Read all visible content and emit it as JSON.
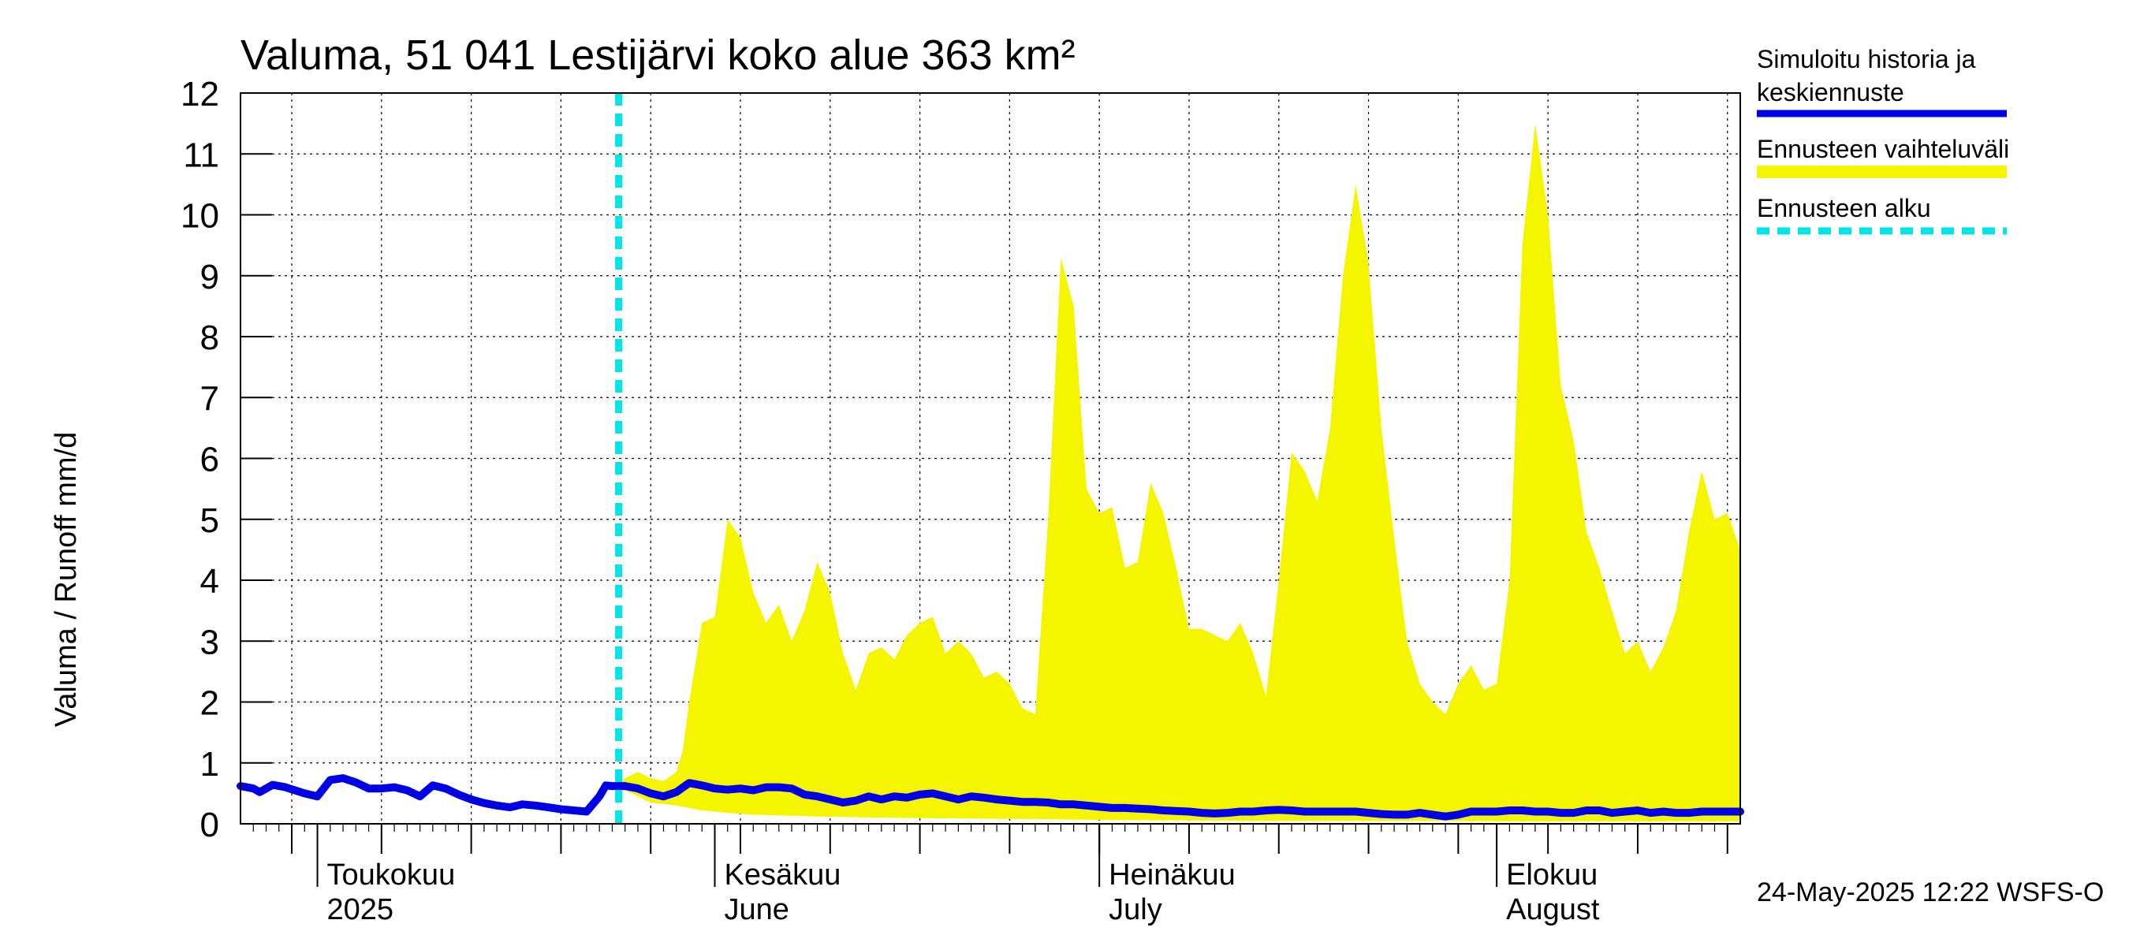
{
  "chart_data": {
    "type": "area",
    "title": "Valuma, 51 041 Lestijärvi koko alue 363 km²",
    "ylabel": "Valuma / Runoff    mm/d",
    "xlabel": "",
    "ylim": [
      0,
      12
    ],
    "yticks": [
      0,
      1,
      2,
      3,
      4,
      5,
      6,
      7,
      8,
      9,
      10,
      11,
      12
    ],
    "x_range_days": [
      0,
      117
    ],
    "x_start_date": "2025-04-25",
    "grid": true,
    "month_labels": [
      {
        "day": 6,
        "line1": "Toukokuu",
        "line2": "2025"
      },
      {
        "day": 37,
        "line1": "Kesäkuu",
        "line2": "June"
      },
      {
        "day": 67,
        "line1": "Heinäkuu",
        "line2": "July"
      },
      {
        "day": 98,
        "line1": "Elokuu",
        "line2": "August"
      }
    ],
    "forecast_start_day": 29.5,
    "series": [
      {
        "name": "Simuloitu historia ja keskiennuste",
        "color": "#0000e6",
        "points": [
          [
            0,
            0.62
          ],
          [
            1,
            0.58
          ],
          [
            1.5,
            0.52
          ],
          [
            2.5,
            0.64
          ],
          [
            3.5,
            0.6
          ],
          [
            5,
            0.5
          ],
          [
            6,
            0.45
          ],
          [
            7,
            0.72
          ],
          [
            8,
            0.75
          ],
          [
            9,
            0.68
          ],
          [
            10,
            0.58
          ],
          [
            11,
            0.58
          ],
          [
            12,
            0.6
          ],
          [
            13,
            0.55
          ],
          [
            14,
            0.45
          ],
          [
            15,
            0.63
          ],
          [
            16,
            0.58
          ],
          [
            17,
            0.48
          ],
          [
            18,
            0.4
          ],
          [
            19,
            0.34
          ],
          [
            20,
            0.3
          ],
          [
            21,
            0.27
          ],
          [
            22,
            0.32
          ],
          [
            23,
            0.3
          ],
          [
            24,
            0.27
          ],
          [
            25,
            0.24
          ],
          [
            26,
            0.22
          ],
          [
            27,
            0.2
          ],
          [
            28,
            0.45
          ],
          [
            28.5,
            0.63
          ],
          [
            29,
            0.62
          ],
          [
            30,
            0.62
          ],
          [
            31,
            0.58
          ],
          [
            32,
            0.5
          ],
          [
            33,
            0.45
          ],
          [
            34,
            0.52
          ],
          [
            35,
            0.67
          ],
          [
            36,
            0.63
          ],
          [
            37,
            0.58
          ],
          [
            38,
            0.56
          ],
          [
            39,
            0.58
          ],
          [
            40,
            0.55
          ],
          [
            41,
            0.6
          ],
          [
            42,
            0.6
          ],
          [
            43,
            0.58
          ],
          [
            44,
            0.48
          ],
          [
            45,
            0.45
          ],
          [
            46,
            0.4
          ],
          [
            47,
            0.35
          ],
          [
            48,
            0.38
          ],
          [
            49,
            0.45
          ],
          [
            50,
            0.4
          ],
          [
            51,
            0.45
          ],
          [
            52,
            0.43
          ],
          [
            53,
            0.48
          ],
          [
            54,
            0.5
          ],
          [
            55,
            0.45
          ],
          [
            56,
            0.4
          ],
          [
            57,
            0.45
          ],
          [
            58,
            0.43
          ],
          [
            59,
            0.4
          ],
          [
            60,
            0.38
          ],
          [
            61,
            0.36
          ],
          [
            62,
            0.36
          ],
          [
            63,
            0.35
          ],
          [
            64,
            0.32
          ],
          [
            65,
            0.32
          ],
          [
            66,
            0.3
          ],
          [
            67,
            0.28
          ],
          [
            68,
            0.26
          ],
          [
            69,
            0.26
          ],
          [
            70,
            0.25
          ],
          [
            71,
            0.24
          ],
          [
            72,
            0.22
          ],
          [
            73,
            0.21
          ],
          [
            74,
            0.2
          ],
          [
            75,
            0.18
          ],
          [
            76,
            0.17
          ],
          [
            77,
            0.18
          ],
          [
            78,
            0.2
          ],
          [
            79,
            0.2
          ],
          [
            80,
            0.22
          ],
          [
            81,
            0.23
          ],
          [
            82,
            0.22
          ],
          [
            83,
            0.2
          ],
          [
            84,
            0.2
          ],
          [
            85,
            0.2
          ],
          [
            86,
            0.2
          ],
          [
            87,
            0.2
          ],
          [
            88,
            0.18
          ],
          [
            89,
            0.16
          ],
          [
            90,
            0.15
          ],
          [
            91,
            0.15
          ],
          [
            92,
            0.18
          ],
          [
            93,
            0.15
          ],
          [
            94,
            0.12
          ],
          [
            95,
            0.15
          ],
          [
            96,
            0.2
          ],
          [
            97,
            0.2
          ],
          [
            98,
            0.2
          ],
          [
            99,
            0.22
          ],
          [
            100,
            0.22
          ],
          [
            101,
            0.2
          ],
          [
            102,
            0.2
          ],
          [
            103,
            0.18
          ],
          [
            104,
            0.18
          ],
          [
            105,
            0.22
          ],
          [
            106,
            0.22
          ],
          [
            107,
            0.18
          ],
          [
            108,
            0.2
          ],
          [
            109,
            0.22
          ],
          [
            110,
            0.18
          ],
          [
            111,
            0.2
          ],
          [
            112,
            0.18
          ],
          [
            113,
            0.18
          ],
          [
            114,
            0.2
          ],
          [
            115,
            0.2
          ],
          [
            116,
            0.2
          ],
          [
            117,
            0.2
          ]
        ]
      },
      {
        "name": "Ennusteen vaihteluväli",
        "color": "#f5f500",
        "upper": [
          [
            29.5,
            0.65
          ],
          [
            30,
            0.75
          ],
          [
            31,
            0.85
          ],
          [
            32,
            0.75
          ],
          [
            33,
            0.7
          ],
          [
            34,
            0.85
          ],
          [
            34.5,
            1.2
          ],
          [
            35,
            2.0
          ],
          [
            36,
            3.3
          ],
          [
            37,
            3.4
          ],
          [
            38,
            5.0
          ],
          [
            39,
            4.7
          ],
          [
            40,
            3.8
          ],
          [
            41,
            3.3
          ],
          [
            42,
            3.6
          ],
          [
            43,
            3.0
          ],
          [
            44,
            3.5
          ],
          [
            45,
            4.3
          ],
          [
            46,
            3.8
          ],
          [
            47,
            2.8
          ],
          [
            48,
            2.2
          ],
          [
            49,
            2.8
          ],
          [
            50,
            2.9
          ],
          [
            51,
            2.7
          ],
          [
            52,
            3.1
          ],
          [
            53,
            3.3
          ],
          [
            54,
            3.4
          ],
          [
            55,
            2.8
          ],
          [
            56,
            3.0
          ],
          [
            57,
            2.8
          ],
          [
            58,
            2.4
          ],
          [
            59,
            2.5
          ],
          [
            60,
            2.3
          ],
          [
            61,
            1.9
          ],
          [
            62,
            1.8
          ],
          [
            63,
            5.0
          ],
          [
            64,
            9.3
          ],
          [
            65,
            8.5
          ],
          [
            66,
            5.5
          ],
          [
            67,
            5.1
          ],
          [
            68,
            5.2
          ],
          [
            69,
            4.2
          ],
          [
            70,
            4.3
          ],
          [
            71,
            5.6
          ],
          [
            72,
            5.1
          ],
          [
            73,
            4.2
          ],
          [
            74,
            3.2
          ],
          [
            75,
            3.2
          ],
          [
            76,
            3.1
          ],
          [
            77,
            3.0
          ],
          [
            78,
            3.3
          ],
          [
            79,
            2.8
          ],
          [
            80,
            2.1
          ],
          [
            81,
            4.0
          ],
          [
            82,
            6.1
          ],
          [
            83,
            5.8
          ],
          [
            84,
            5.3
          ],
          [
            85,
            6.5
          ],
          [
            86,
            9.0
          ],
          [
            87,
            10.5
          ],
          [
            88,
            9.2
          ],
          [
            89,
            6.5
          ],
          [
            90,
            4.7
          ],
          [
            91,
            3.0
          ],
          [
            92,
            2.3
          ],
          [
            93,
            2.0
          ],
          [
            94,
            1.8
          ],
          [
            95,
            2.3
          ],
          [
            96,
            2.6
          ],
          [
            97,
            2.2
          ],
          [
            98,
            2.3
          ],
          [
            99,
            4.0
          ],
          [
            100,
            9.5
          ],
          [
            101,
            11.5
          ],
          [
            102,
            10.0
          ],
          [
            103,
            7.2
          ],
          [
            104,
            6.3
          ],
          [
            105,
            4.8
          ],
          [
            106,
            4.2
          ],
          [
            107,
            3.5
          ],
          [
            108,
            2.8
          ],
          [
            109,
            3.0
          ],
          [
            110,
            2.5
          ],
          [
            111,
            2.9
          ],
          [
            112,
            3.5
          ],
          [
            113,
            4.8
          ],
          [
            114,
            5.8
          ],
          [
            115,
            5.0
          ],
          [
            116,
            5.1
          ],
          [
            117,
            4.5
          ]
        ],
        "lower": [
          [
            29.5,
            0.6
          ],
          [
            32,
            0.35
          ],
          [
            34,
            0.3
          ],
          [
            36,
            0.22
          ],
          [
            38,
            0.18
          ],
          [
            40,
            0.15
          ],
          [
            45,
            0.12
          ],
          [
            50,
            0.1
          ],
          [
            60,
            0.08
          ],
          [
            70,
            0.06
          ],
          [
            80,
            0.05
          ],
          [
            90,
            0.05
          ],
          [
            100,
            0.04
          ],
          [
            117,
            0.04
          ]
        ]
      },
      {
        "name": "Ennusteen alku",
        "color": "#00e6e6"
      }
    ],
    "legend": [
      {
        "label_line1": "Simuloitu historia ja",
        "label_line2": "keskiennuste",
        "color": "#0000e6",
        "style": "solid"
      },
      {
        "label_line1": "Ennusteen vaihteluväli",
        "label_line2": "",
        "color": "#f5f500",
        "style": "thick"
      },
      {
        "label_line1": "Ennusteen alku",
        "label_line2": "",
        "color": "#00e6e6",
        "style": "dashed"
      }
    ],
    "timestamp": "24-May-2025 12:22 WSFS-O"
  }
}
